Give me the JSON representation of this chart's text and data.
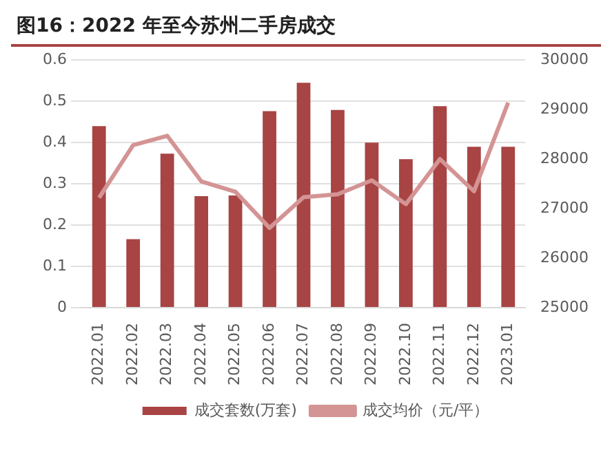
{
  "chart_data": {
    "type": "bar",
    "title": "图16：2022 年至今苏州二手房成交",
    "categories": [
      "2022.01",
      "2022.02",
      "2022.03",
      "2022.04",
      "2022.05",
      "2022.06",
      "2022.07",
      "2022.08",
      "2022.09",
      "2022.10",
      "2022.11",
      "2022.12",
      "2023.01"
    ],
    "series": [
      {
        "name": "成交套数(万套)",
        "color": "#a84444",
        "values": [
          0.44,
          0.166,
          0.373,
          0.27,
          0.272,
          0.476,
          0.545,
          0.479,
          0.4,
          0.36,
          0.488,
          0.39,
          0.39
        ]
      },
      {
        "name": "成交均价（元/平）",
        "type": "line",
        "axis": "y2",
        "color": "#d49494",
        "values": [
          27220,
          28280,
          28470,
          27550,
          27340,
          26610,
          27230,
          27290,
          27570,
          27090,
          28000,
          27350,
          29140
        ]
      }
    ],
    "ylim": [
      0,
      0.6
    ],
    "yticks": [
      0,
      0.1,
      0.2,
      0.3,
      0.4,
      0.5,
      0.6
    ],
    "y2lim": [
      25000,
      30000
    ],
    "y2ticks": [
      25000,
      26000,
      27000,
      28000,
      29000,
      30000
    ],
    "grid": "y",
    "legend": "bottom",
    "marker": "none"
  }
}
